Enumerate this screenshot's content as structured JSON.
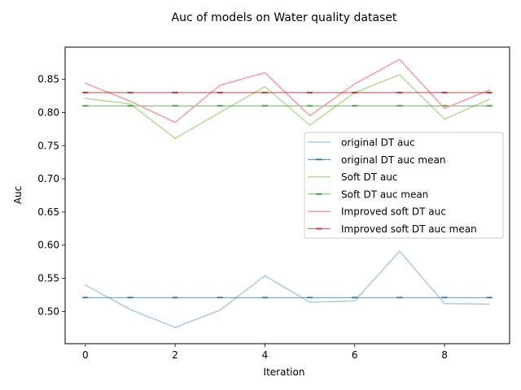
{
  "chart_data": {
    "type": "line",
    "title": "Auc of models on Water quality dataset",
    "xlabel": "Iteration",
    "ylabel": "Auc",
    "x": [
      0,
      1,
      2,
      3,
      4,
      5,
      6,
      7,
      8,
      9
    ],
    "xlim": [
      -0.45,
      9.45
    ],
    "ylim": [
      0.4515,
      0.8985
    ],
    "x_ticks": [
      0,
      2,
      4,
      6,
      8
    ],
    "y_ticks": [
      0.5,
      0.55,
      0.6,
      0.65,
      0.7,
      0.75,
      0.8,
      0.85
    ],
    "x_tick_labels": [
      "0",
      "2",
      "4",
      "6",
      "8"
    ],
    "y_tick_labels": [
      "0.50",
      "0.55",
      "0.60",
      "0.65",
      "0.70",
      "0.75",
      "0.80",
      "0.85"
    ],
    "grid": false,
    "legend_position": "center-right",
    "series": [
      {
        "name": "original DT auc",
        "kind": "line",
        "color": "#a6cee3",
        "values": [
          0.54,
          0.503,
          0.476,
          0.502,
          0.554,
          0.514,
          0.516,
          0.591,
          0.512,
          0.511
        ]
      },
      {
        "name": "original DT auc mean",
        "kind": "mean",
        "color": "#1f78b4",
        "value": 0.521
      },
      {
        "name": "Soft DT auc",
        "kind": "line",
        "color": "#b2df8a",
        "values": [
          0.821,
          0.813,
          0.761,
          0.8,
          0.839,
          0.781,
          0.83,
          0.857,
          0.79,
          0.82
        ]
      },
      {
        "name": "Soft DT auc mean",
        "kind": "mean",
        "color": "#33a02c",
        "value": 0.81
      },
      {
        "name": "Improved soft DT auc",
        "kind": "line",
        "color": "#fb9a99",
        "values": [
          0.844,
          0.817,
          0.785,
          0.841,
          0.86,
          0.795,
          0.843,
          0.88,
          0.806,
          0.834
        ]
      },
      {
        "name": "Improved soft DT auc mean",
        "kind": "mean",
        "color": "#e31a1c",
        "value": 0.83
      }
    ]
  }
}
